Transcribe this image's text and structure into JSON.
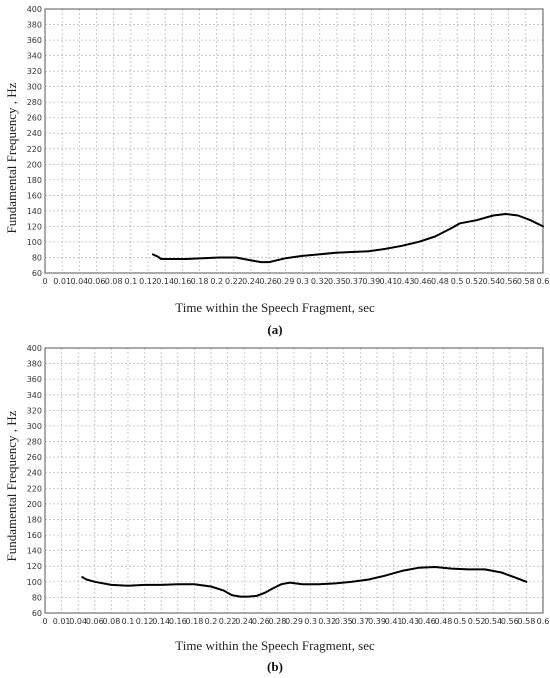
{
  "chart_data": [
    {
      "type": "line",
      "panel_label": "a",
      "xlabel": "Time within the Speech Fragment, sec",
      "ylabel": "Fundamental Frequency , Hz",
      "ylim": [
        60,
        400
      ],
      "xlim": [
        0,
        0.6
      ],
      "yticks": [
        "60",
        "80",
        "100",
        "120",
        "140",
        "160",
        "180",
        "200",
        "220",
        "240",
        "260",
        "280",
        "300",
        "320",
        "340",
        "360",
        "380",
        "400"
      ],
      "xticks": [
        "0",
        "0.01",
        "0.04",
        "0.06",
        "0.08",
        "0.1",
        "0.12",
        "0.14",
        "0.16",
        "0.18",
        "0.2",
        "0.22",
        "0.24",
        "0.26",
        "0.29",
        "0.3",
        "0.32",
        "0.35",
        "0.37",
        "0.39",
        "0.41",
        "0.43",
        "0.46",
        "0.48",
        "0.5",
        "0.52",
        "0.54",
        "0.56",
        "0.58",
        "0.6"
      ],
      "grid": true,
      "series": [
        {
          "color": "#000000",
          "x": [
            0.13,
            0.136,
            0.14,
            0.15,
            0.17,
            0.19,
            0.21,
            0.23,
            0.25,
            0.26,
            0.27,
            0.29,
            0.31,
            0.33,
            0.35,
            0.37,
            0.39,
            0.41,
            0.43,
            0.45,
            0.47,
            0.49,
            0.5,
            0.52,
            0.54,
            0.555,
            0.57,
            0.585,
            0.6
          ],
          "y": [
            84,
            81,
            78,
            78,
            78,
            79,
            80,
            80,
            76,
            74,
            74,
            79,
            82,
            84,
            86,
            87,
            88,
            91,
            95,
            100,
            107,
            118,
            124,
            128,
            134,
            136,
            134,
            128,
            120
          ]
        }
      ]
    },
    {
      "type": "line",
      "panel_label": "b",
      "xlabel": "Time within the Speech Fragment, sec",
      "ylabel": "Fundamental Frequency , Hz",
      "ylim": [
        60,
        400
      ],
      "xlim": [
        0,
        0.6
      ],
      "yticks": [
        "60",
        "80",
        "100",
        "120",
        "140",
        "160",
        "180",
        "200",
        "220",
        "240",
        "260",
        "280",
        "300",
        "320",
        "340",
        "360",
        "380",
        "400"
      ],
      "xticks": [
        "0",
        "0.01",
        "0.04",
        "0.06",
        "0.08",
        "0.1",
        "0.12",
        "0.14",
        "0.16",
        "0.18",
        "0.2",
        "0.22",
        "0.24",
        "0.26",
        "0.28",
        "0.29",
        "0.3",
        "0.32",
        "0.35",
        "0.37",
        "0.39",
        "0.41",
        "0.43",
        "0.46",
        "0.48",
        "0.5",
        "0.52",
        "0.54",
        "0.56",
        "0.58",
        "0.6"
      ],
      "grid": true,
      "series": [
        {
          "color": "#000000",
          "x": [
            0.045,
            0.05,
            0.06,
            0.08,
            0.1,
            0.12,
            0.14,
            0.16,
            0.18,
            0.2,
            0.215,
            0.225,
            0.235,
            0.245,
            0.255,
            0.265,
            0.275,
            0.285,
            0.295,
            0.31,
            0.33,
            0.35,
            0.37,
            0.39,
            0.41,
            0.43,
            0.45,
            0.47,
            0.49,
            0.51,
            0.53,
            0.55,
            0.565,
            0.58
          ],
          "y": [
            106,
            103,
            100,
            96,
            95,
            96,
            96,
            97,
            97,
            94,
            89,
            83,
            81,
            81,
            82,
            86,
            92,
            97,
            99,
            97,
            97,
            98,
            100,
            103,
            108,
            114,
            118,
            119,
            117,
            116,
            116,
            112,
            106,
            100
          ]
        }
      ]
    }
  ],
  "captions": {
    "a": "(a)",
    "b": "(b)"
  }
}
